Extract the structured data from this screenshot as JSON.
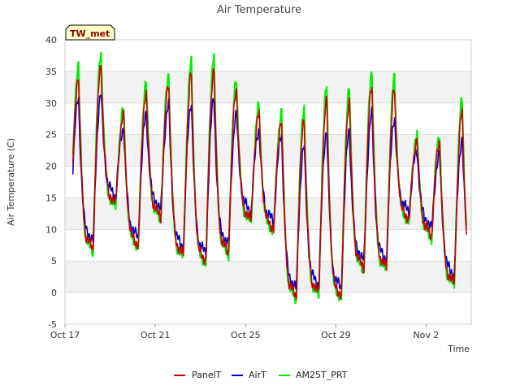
{
  "chart_data": {
    "type": "line",
    "title": "Air Temperature",
    "xlabel": "Time",
    "ylabel": "Air Temperature (C)",
    "tag": "TW_met",
    "ylim": [
      -5,
      40
    ],
    "yticks": [
      "-5",
      "0",
      "5",
      "10",
      "15",
      "20",
      "25",
      "30",
      "35",
      "40"
    ],
    "xlim": [
      "2021-10-17",
      "2021-11-04"
    ],
    "xticks": [
      {
        "date": "2021-10-17",
        "label": "Oct 17"
      },
      {
        "date": "2021-10-21",
        "label": "Oct 21"
      },
      {
        "date": "2021-10-25",
        "label": "Oct 25"
      },
      {
        "date": "2021-10-29",
        "label": "Oct 29"
      },
      {
        "date": "2021-11-02",
        "label": "Nov 2"
      }
    ],
    "grid": "horizontal bands",
    "legend_position": "bottom",
    "daily": [
      {
        "date": "2021-10-17",
        "min": 9.5,
        "max": 36.0
      },
      {
        "date": "2021-10-18",
        "min": 6.5,
        "max": 38.0
      },
      {
        "date": "2021-10-19",
        "min": 13.5,
        "max": 29.0
      },
      {
        "date": "2021-10-20",
        "min": 7.0,
        "max": 33.5
      },
      {
        "date": "2021-10-21",
        "min": 11.5,
        "max": 34.5
      },
      {
        "date": "2021-10-22",
        "min": 5.5,
        "max": 36.5
      },
      {
        "date": "2021-10-23",
        "min": 4.5,
        "max": 37.5
      },
      {
        "date": "2021-10-24",
        "min": 6.0,
        "max": 34.0
      },
      {
        "date": "2021-10-25",
        "min": 11.0,
        "max": 29.5
      },
      {
        "date": "2021-10-26",
        "min": 9.5,
        "max": 28.5
      },
      {
        "date": "2021-10-27",
        "min": -1.0,
        "max": 29.5
      },
      {
        "date": "2021-10-28",
        "min": -0.5,
        "max": 32.5
      },
      {
        "date": "2021-10-29",
        "min": -1.0,
        "max": 32.5
      },
      {
        "date": "2021-10-30",
        "min": 3.5,
        "max": 35.0
      },
      {
        "date": "2021-10-31",
        "min": 3.5,
        "max": 34.0
      },
      {
        "date": "2021-11-01",
        "min": 11.0,
        "max": 25.0
      },
      {
        "date": "2021-11-02",
        "min": 8.5,
        "max": 25.0
      },
      {
        "date": "2021-11-03",
        "min": 1.0,
        "max": 30.5
      },
      {
        "date": "2021-11-04",
        "min": 2.0,
        "max": 2.0
      }
    ],
    "series": [
      {
        "name": "PanelT",
        "color": "#cc0000",
        "max_scale": 0.93,
        "min_offset": 0.4
      },
      {
        "name": "AirT",
        "color": "#0000cc",
        "max_scale": 0.78,
        "min_offset": 1.6
      },
      {
        "name": "AM25T_PRT",
        "color": "#00ee00",
        "max_scale": 1.0,
        "min_offset": 0.0
      }
    ],
    "band_color": "#f2f2f2",
    "grid_color": "#dddddd"
  }
}
